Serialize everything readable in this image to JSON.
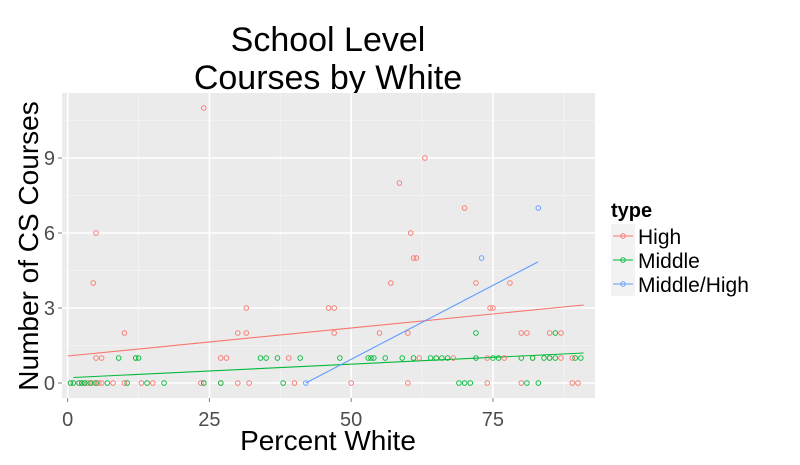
{
  "chart_data": {
    "type": "scatter",
    "title_lines": [
      "School Level",
      "Courses by White"
    ],
    "xlabel": "Percent White",
    "ylabel": "Number of CS Courses",
    "xlim": [
      -1,
      93
    ],
    "ylim": [
      -0.6,
      11.6
    ],
    "x_ticks": [
      0,
      25,
      50,
      75
    ],
    "y_ticks": [
      0,
      3,
      6,
      9
    ],
    "x_minor": [
      12.5,
      37.5,
      62.5,
      87.5
    ],
    "y_minor": [
      1.5,
      4.5,
      7.5,
      10.5
    ],
    "grid": true,
    "panel_background": "#ebebeb",
    "legend": {
      "title": "type",
      "position": "right",
      "entries": [
        "High",
        "Middle",
        "Middle/High"
      ]
    },
    "series": [
      {
        "name": "High",
        "color": "#f8766d",
        "points": [
          [
            0.5,
            0
          ],
          [
            2,
            0
          ],
          [
            2.5,
            0
          ],
          [
            3,
            0
          ],
          [
            3.5,
            0
          ],
          [
            4,
            0
          ],
          [
            4.5,
            0
          ],
          [
            5,
            0
          ],
          [
            5.5,
            0
          ],
          [
            6,
            0
          ],
          [
            8,
            0
          ],
          [
            10,
            0
          ],
          [
            13,
            0
          ],
          [
            15,
            0
          ],
          [
            23.5,
            0
          ],
          [
            24,
            0
          ],
          [
            27,
            0
          ],
          [
            30,
            0
          ],
          [
            32,
            0
          ],
          [
            40,
            0
          ],
          [
            50,
            0
          ],
          [
            60,
            0
          ],
          [
            74,
            0
          ],
          [
            80,
            0
          ],
          [
            89,
            0
          ],
          [
            90,
            0
          ],
          [
            5,
            1
          ],
          [
            6,
            1
          ],
          [
            12,
            1
          ],
          [
            27,
            1
          ],
          [
            28,
            1
          ],
          [
            39,
            1
          ],
          [
            62,
            1
          ],
          [
            65,
            1
          ],
          [
            68,
            1
          ],
          [
            74,
            1
          ],
          [
            77,
            1
          ],
          [
            82,
            1
          ],
          [
            85,
            1
          ],
          [
            87,
            1
          ],
          [
            89,
            1
          ],
          [
            10,
            2
          ],
          [
            30,
            2
          ],
          [
            31.5,
            2
          ],
          [
            47,
            2
          ],
          [
            55,
            2
          ],
          [
            60,
            2
          ],
          [
            80,
            2
          ],
          [
            81,
            2
          ],
          [
            85,
            2
          ],
          [
            87,
            2
          ],
          [
            31.5,
            3
          ],
          [
            46,
            3
          ],
          [
            47,
            3
          ],
          [
            74.5,
            3
          ],
          [
            75,
            3
          ],
          [
            4.5,
            4
          ],
          [
            57,
            4
          ],
          [
            72,
            4
          ],
          [
            78,
            4
          ],
          [
            61,
            5
          ],
          [
            61.5,
            5
          ],
          [
            5,
            6
          ],
          [
            60.5,
            6
          ],
          [
            70,
            7
          ],
          [
            58.5,
            8
          ],
          [
            63,
            9
          ],
          [
            24,
            11
          ]
        ],
        "fit": {
          "x": [
            0,
            91
          ],
          "y": [
            1.08,
            3.12
          ]
        }
      },
      {
        "name": "Middle",
        "color": "#00ba38",
        "points": [
          [
            0.5,
            0
          ],
          [
            1,
            0
          ],
          [
            2,
            0
          ],
          [
            2.5,
            0
          ],
          [
            3,
            0
          ],
          [
            4,
            0
          ],
          [
            5,
            0
          ],
          [
            7,
            0
          ],
          [
            10.5,
            0
          ],
          [
            14,
            0
          ],
          [
            17,
            0
          ],
          [
            24,
            0
          ],
          [
            27,
            0
          ],
          [
            38,
            0
          ],
          [
            69,
            0
          ],
          [
            70,
            0
          ],
          [
            71,
            0
          ],
          [
            81,
            0
          ],
          [
            83,
            0
          ],
          [
            9,
            1
          ],
          [
            12,
            1
          ],
          [
            12.5,
            1
          ],
          [
            34,
            1
          ],
          [
            35,
            1
          ],
          [
            37,
            1
          ],
          [
            41,
            1
          ],
          [
            48,
            1
          ],
          [
            53,
            1
          ],
          [
            53.5,
            1
          ],
          [
            54,
            1
          ],
          [
            56,
            1
          ],
          [
            59,
            1
          ],
          [
            61,
            1
          ],
          [
            64,
            1
          ],
          [
            65,
            1
          ],
          [
            66,
            1
          ],
          [
            67,
            1
          ],
          [
            72,
            1
          ],
          [
            75,
            1
          ],
          [
            76,
            1
          ],
          [
            80,
            1
          ],
          [
            82,
            1
          ],
          [
            84,
            1
          ],
          [
            85,
            1
          ],
          [
            86,
            1
          ],
          [
            89.5,
            1
          ],
          [
            90.5,
            1
          ],
          [
            72,
            2
          ],
          [
            86,
            2
          ]
        ],
        "fit": {
          "x": [
            1,
            91
          ],
          "y": [
            0.22,
            1.2
          ]
        }
      },
      {
        "name": "Middle/High",
        "color": "#619cff",
        "points": [
          [
            42,
            0
          ],
          [
            73,
            5
          ],
          [
            83,
            7
          ]
        ],
        "fit": {
          "x": [
            42,
            83
          ],
          "y": [
            0.0,
            4.85
          ]
        }
      }
    ]
  }
}
